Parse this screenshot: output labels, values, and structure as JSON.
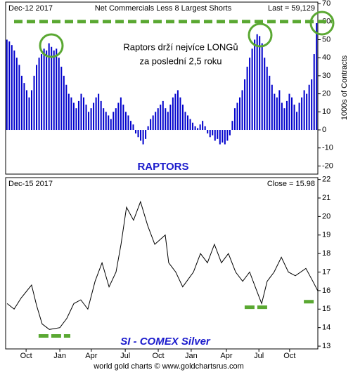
{
  "chart_data": [
    {
      "type": "bar",
      "date_label": "Dec-12 2017",
      "title": "Net Commercials Less 8 Largest Shorts",
      "last_label": "Last = 59,129",
      "annotation": [
        "Raptors drží nejvíce LONGů",
        "za poslední 2,5 roku"
      ],
      "panel_label": "RAPTORS",
      "y_label": "1000s of Contracts",
      "color": "#0000cc",
      "reference_line": 60,
      "reference_color": "#5aa832",
      "values": [
        50,
        49,
        47,
        44,
        40,
        36,
        30,
        26,
        22,
        18,
        22,
        30,
        36,
        40,
        42,
        45,
        44,
        48,
        46,
        44,
        45,
        40,
        35,
        30,
        25,
        20,
        18,
        15,
        12,
        16,
        20,
        18,
        14,
        10,
        12,
        15,
        18,
        20,
        16,
        12,
        10,
        8,
        6,
        10,
        12,
        15,
        18,
        14,
        10,
        8,
        5,
        3,
        -2,
        -4,
        -6,
        -8,
        -5,
        2,
        6,
        8,
        10,
        12,
        14,
        16,
        12,
        10,
        14,
        18,
        20,
        22,
        18,
        14,
        10,
        8,
        6,
        4,
        2,
        1,
        3,
        5,
        2,
        -2,
        -4,
        -3,
        -6,
        -5,
        -8,
        -7,
        -8,
        -6,
        -3,
        5,
        12,
        15,
        18,
        22,
        28,
        35,
        40,
        45,
        50,
        53,
        52,
        48,
        40,
        35,
        30,
        25,
        20,
        18,
        22,
        15,
        12,
        16,
        20,
        18,
        14,
        10,
        15,
        18,
        22,
        20,
        25,
        28,
        42,
        59.129
      ],
      "ylim": [
        -24.5,
        70.8
      ],
      "yticks": [
        -20,
        -10,
        0,
        10,
        20,
        30,
        40,
        50,
        60,
        70
      ]
    },
    {
      "type": "line",
      "date_label": "Dec-15 2017",
      "last_label": "Close = 15.98",
      "panel_label": "SI  -  COMEX Silver",
      "color": "#000000",
      "support_color": "#5aa832",
      "support_levels": [
        {
          "value": 13.55,
          "x": [
            13.2,
            25.9
          ]
        },
        {
          "value": 15.1,
          "x": [
            95.7,
            105.3
          ]
        },
        {
          "value": 15.4,
          "x": [
            119.4,
            124.4
          ]
        }
      ],
      "x": [
        0.6,
        3.4,
        6.2,
        10.4,
        12.4,
        14.6,
        17.5,
        21.7,
        24.5,
        27.3,
        30.1,
        32.9,
        35.8,
        38.6,
        41.4,
        44.2,
        46.2,
        48.4,
        51.2,
        54.0,
        56.9,
        59.7,
        63.9,
        65.3,
        68.1,
        70.9,
        75.2,
        78.0,
        80.8,
        83.6,
        86.4,
        89.2,
        92.1,
        94.9,
        97.7,
        100.5,
        102.5,
        104.7,
        107.5,
        110.4,
        113.2,
        116.0,
        120.2,
        123.0,
        125
      ],
      "values": [
        15.3,
        15.0,
        15.6,
        16.3,
        15.2,
        14.2,
        13.9,
        14.0,
        14.5,
        15.3,
        15.5,
        15.0,
        16.5,
        17.5,
        16.2,
        17.0,
        18.5,
        20.5,
        19.8,
        20.8,
        19.5,
        18.5,
        19.0,
        17.5,
        17.0,
        16.2,
        17.0,
        18.0,
        17.5,
        18.5,
        17.5,
        18.0,
        17.0,
        16.5,
        17.0,
        16.0,
        15.3,
        16.5,
        17.0,
        17.8,
        17.0,
        16.8,
        17.2,
        16.5,
        15.98
      ],
      "xlim": [
        0,
        125
      ],
      "xticks": [
        {
          "value": 8.2,
          "label": "Oct"
        },
        {
          "value": 21.7,
          "label": "Jan"
        },
        {
          "value": 34.3,
          "label": "Apr"
        },
        {
          "value": 47.9,
          "label": "Jul"
        },
        {
          "value": 61.1,
          "label": "Oct"
        },
        {
          "value": 74.3,
          "label": "Jan"
        },
        {
          "value": 88.4,
          "label": "Apr"
        },
        {
          "value": 101.4,
          "label": "Jul"
        },
        {
          "value": 113.7,
          "label": "Oct"
        }
      ],
      "ylim": [
        12.85,
        22.1
      ],
      "yticks": [
        13,
        14,
        15,
        16,
        17,
        18,
        19,
        20,
        21,
        22
      ],
      "footer": "world gold charts © www.goldchartsrus.com"
    }
  ]
}
